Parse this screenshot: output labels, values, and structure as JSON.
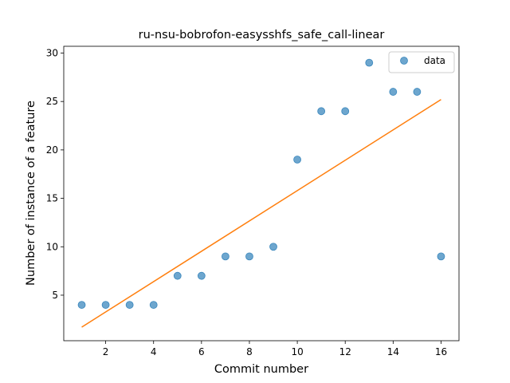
{
  "chart_data": {
    "type": "scatter",
    "title": "ru-nsu-bobrofon-easysshfs_safe_call-linear",
    "xlabel": "Commit number",
    "ylabel": "Number of instance of a feature",
    "xlim": [
      0.25,
      16.75
    ],
    "ylim": [
      0.3,
      30.7
    ],
    "xticks": [
      2,
      4,
      6,
      8,
      10,
      12,
      14,
      16
    ],
    "yticks": [
      5,
      10,
      15,
      20,
      25,
      30
    ],
    "grid": false,
    "legend_position": "top-right",
    "series": [
      {
        "name": "data",
        "kind": "scatter",
        "color": "#1f77b4",
        "x": [
          1,
          2,
          3,
          4,
          5,
          6,
          7,
          8,
          9,
          10,
          11,
          12,
          13,
          14,
          15,
          16
        ],
        "y": [
          4,
          4,
          4,
          4,
          7,
          7,
          9,
          9,
          10,
          19,
          24,
          24,
          29,
          26,
          26,
          9
        ]
      },
      {
        "kind": "line",
        "color": "#ff7f0e",
        "x": [
          1,
          16
        ],
        "y": [
          1.7,
          25.2
        ]
      }
    ]
  }
}
